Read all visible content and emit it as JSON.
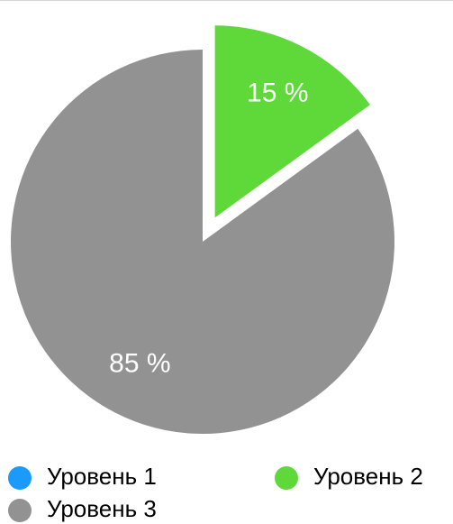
{
  "chart_data": {
    "type": "pie",
    "categories": [
      "Уровень 1",
      "Уровень 2",
      "Уровень 3"
    ],
    "values": [
      0,
      15,
      85
    ],
    "value_labels": [
      null,
      "15 %",
      "85 %"
    ],
    "colors": [
      "#1a9bfc",
      "#5fd93a",
      "#929292"
    ],
    "exploded": [
      false,
      true,
      false
    ],
    "legend": "bottom"
  }
}
